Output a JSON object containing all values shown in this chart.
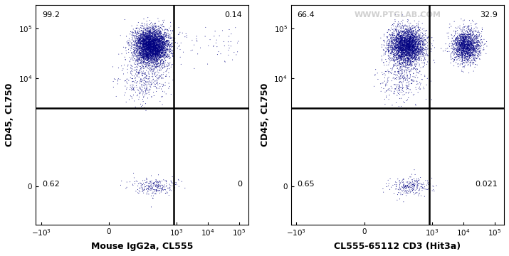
{
  "panel1": {
    "xlabel": "Mouse IgG2a, CL555",
    "ylabel": "CD45, CL750",
    "quadrant_labels": {
      "UL": "99.2",
      "UR": "0.14",
      "LL": "0.62",
      "LR": "0"
    },
    "main_cluster": {
      "x_log_mean": 2.2,
      "x_log_std": 0.28,
      "y_log_mean": 4.65,
      "y_log_std": 0.18,
      "n": 4200
    },
    "tail_cluster": {
      "x_log_mean": 2.0,
      "x_log_std": 0.35,
      "y_log_mean": 4.0,
      "y_log_std": 0.25,
      "n": 400
    },
    "sparse_ur": {
      "n": 60
    },
    "low_cluster": {
      "x_log_mean": 2.3,
      "x_log_std": 0.35,
      "y_mean": 0,
      "y_std": 50,
      "n": 250
    }
  },
  "panel2": {
    "xlabel": "CL555-65112 CD3 (Hit3a)",
    "ylabel": "CD45, CL750",
    "quadrant_labels": {
      "UL": "66.4",
      "UR": "32.9",
      "LL": "0.65",
      "LR": "0.021"
    },
    "main_cluster_left": {
      "x_log_mean": 2.2,
      "x_log_std": 0.28,
      "y_log_mean": 4.65,
      "y_log_std": 0.18,
      "n": 3200
    },
    "main_cluster_right": {
      "x_log_mean": 4.1,
      "x_log_std": 0.22,
      "y_log_mean": 4.65,
      "y_log_std": 0.17,
      "n": 1700
    },
    "tail_cluster": {
      "x_log_mean": 2.0,
      "x_log_std": 0.35,
      "y_log_mean": 4.0,
      "y_log_std": 0.25,
      "n": 350
    },
    "low_cluster": {
      "x_log_mean": 2.3,
      "x_log_std": 0.35,
      "y_mean": 0,
      "y_std": 50,
      "n": 250
    },
    "watermark": "WWW.PTGLAB.COM"
  },
  "quadrant_line_x": 800,
  "quadrant_line_y": 2500,
  "xlim_data": [
    -1500,
    200000
  ],
  "ylim_data": [
    -400,
    300000
  ],
  "background_color": "#ffffff",
  "colormap": "jet",
  "gate_linewidth": 1.8,
  "gate_color": "#000000",
  "dot_size": 0.5,
  "linthresh_x": 10,
  "linthresh_y": 100,
  "linscale": 0.15,
  "xticks": [
    -1000,
    0,
    1000,
    10000,
    100000
  ],
  "yticks": [
    0,
    10000,
    100000
  ],
  "xtick_labels": [
    "$-10^3$",
    "0",
    "$10^3$",
    "$10^4$",
    "$10^5$"
  ],
  "ytick_labels": [
    "0",
    "$10^4$",
    "$10^5$"
  ],
  "xlabel_fontsize": 9,
  "ylabel_fontsize": 9,
  "tick_fontsize": 7.5,
  "label_fontsize": 8,
  "watermark_color": "#c8c8c8",
  "watermark_fontsize": 8
}
